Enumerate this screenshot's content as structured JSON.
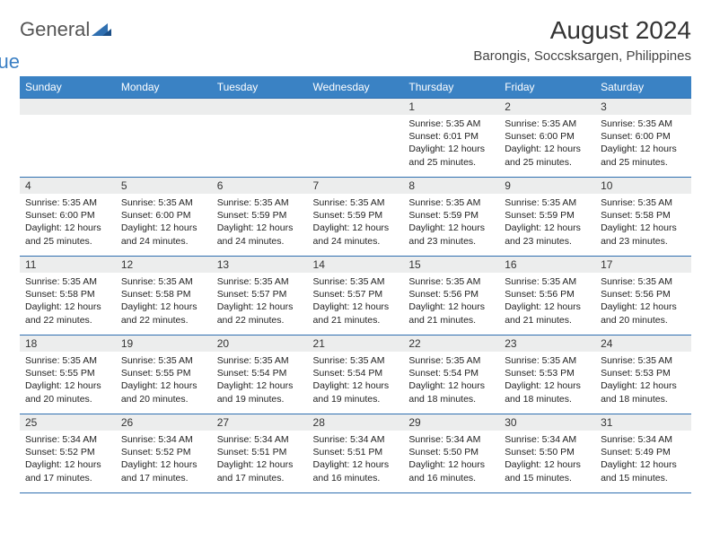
{
  "logo": {
    "text1": "General",
    "text2": "Blue"
  },
  "title": "August 2024",
  "location": "Barongis, Soccsksargen, Philippines",
  "colors": {
    "header_bg": "#3a82c4",
    "header_text": "#ffffff",
    "border": "#2f6fb0",
    "daynum_bg": "#eceded",
    "text": "#222222",
    "page_bg": "#ffffff"
  },
  "day_headers": [
    "Sunday",
    "Monday",
    "Tuesday",
    "Wednesday",
    "Thursday",
    "Friday",
    "Saturday"
  ],
  "weeks": [
    [
      null,
      null,
      null,
      null,
      {
        "n": "1",
        "sunrise": "5:35 AM",
        "sunset": "6:01 PM",
        "daylight": "12 hours and 25 minutes."
      },
      {
        "n": "2",
        "sunrise": "5:35 AM",
        "sunset": "6:00 PM",
        "daylight": "12 hours and 25 minutes."
      },
      {
        "n": "3",
        "sunrise": "5:35 AM",
        "sunset": "6:00 PM",
        "daylight": "12 hours and 25 minutes."
      }
    ],
    [
      {
        "n": "4",
        "sunrise": "5:35 AM",
        "sunset": "6:00 PM",
        "daylight": "12 hours and 25 minutes."
      },
      {
        "n": "5",
        "sunrise": "5:35 AM",
        "sunset": "6:00 PM",
        "daylight": "12 hours and 24 minutes."
      },
      {
        "n": "6",
        "sunrise": "5:35 AM",
        "sunset": "5:59 PM",
        "daylight": "12 hours and 24 minutes."
      },
      {
        "n": "7",
        "sunrise": "5:35 AM",
        "sunset": "5:59 PM",
        "daylight": "12 hours and 24 minutes."
      },
      {
        "n": "8",
        "sunrise": "5:35 AM",
        "sunset": "5:59 PM",
        "daylight": "12 hours and 23 minutes."
      },
      {
        "n": "9",
        "sunrise": "5:35 AM",
        "sunset": "5:59 PM",
        "daylight": "12 hours and 23 minutes."
      },
      {
        "n": "10",
        "sunrise": "5:35 AM",
        "sunset": "5:58 PM",
        "daylight": "12 hours and 23 minutes."
      }
    ],
    [
      {
        "n": "11",
        "sunrise": "5:35 AM",
        "sunset": "5:58 PM",
        "daylight": "12 hours and 22 minutes."
      },
      {
        "n": "12",
        "sunrise": "5:35 AM",
        "sunset": "5:58 PM",
        "daylight": "12 hours and 22 minutes."
      },
      {
        "n": "13",
        "sunrise": "5:35 AM",
        "sunset": "5:57 PM",
        "daylight": "12 hours and 22 minutes."
      },
      {
        "n": "14",
        "sunrise": "5:35 AM",
        "sunset": "5:57 PM",
        "daylight": "12 hours and 21 minutes."
      },
      {
        "n": "15",
        "sunrise": "5:35 AM",
        "sunset": "5:56 PM",
        "daylight": "12 hours and 21 minutes."
      },
      {
        "n": "16",
        "sunrise": "5:35 AM",
        "sunset": "5:56 PM",
        "daylight": "12 hours and 21 minutes."
      },
      {
        "n": "17",
        "sunrise": "5:35 AM",
        "sunset": "5:56 PM",
        "daylight": "12 hours and 20 minutes."
      }
    ],
    [
      {
        "n": "18",
        "sunrise": "5:35 AM",
        "sunset": "5:55 PM",
        "daylight": "12 hours and 20 minutes."
      },
      {
        "n": "19",
        "sunrise": "5:35 AM",
        "sunset": "5:55 PM",
        "daylight": "12 hours and 20 minutes."
      },
      {
        "n": "20",
        "sunrise": "5:35 AM",
        "sunset": "5:54 PM",
        "daylight": "12 hours and 19 minutes."
      },
      {
        "n": "21",
        "sunrise": "5:35 AM",
        "sunset": "5:54 PM",
        "daylight": "12 hours and 19 minutes."
      },
      {
        "n": "22",
        "sunrise": "5:35 AM",
        "sunset": "5:54 PM",
        "daylight": "12 hours and 18 minutes."
      },
      {
        "n": "23",
        "sunrise": "5:35 AM",
        "sunset": "5:53 PM",
        "daylight": "12 hours and 18 minutes."
      },
      {
        "n": "24",
        "sunrise": "5:35 AM",
        "sunset": "5:53 PM",
        "daylight": "12 hours and 18 minutes."
      }
    ],
    [
      {
        "n": "25",
        "sunrise": "5:34 AM",
        "sunset": "5:52 PM",
        "daylight": "12 hours and 17 minutes."
      },
      {
        "n": "26",
        "sunrise": "5:34 AM",
        "sunset": "5:52 PM",
        "daylight": "12 hours and 17 minutes."
      },
      {
        "n": "27",
        "sunrise": "5:34 AM",
        "sunset": "5:51 PM",
        "daylight": "12 hours and 17 minutes."
      },
      {
        "n": "28",
        "sunrise": "5:34 AM",
        "sunset": "5:51 PM",
        "daylight": "12 hours and 16 minutes."
      },
      {
        "n": "29",
        "sunrise": "5:34 AM",
        "sunset": "5:50 PM",
        "daylight": "12 hours and 16 minutes."
      },
      {
        "n": "30",
        "sunrise": "5:34 AM",
        "sunset": "5:50 PM",
        "daylight": "12 hours and 15 minutes."
      },
      {
        "n": "31",
        "sunrise": "5:34 AM",
        "sunset": "5:49 PM",
        "daylight": "12 hours and 15 minutes."
      }
    ]
  ],
  "labels": {
    "sunrise": "Sunrise: ",
    "sunset": "Sunset: ",
    "daylight": "Daylight: "
  }
}
